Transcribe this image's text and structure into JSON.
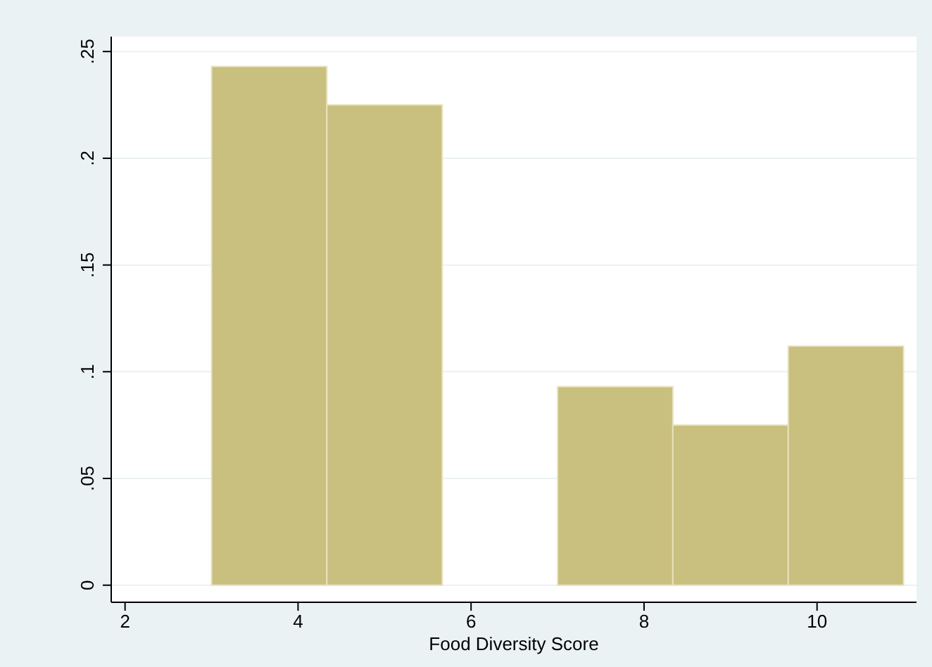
{
  "chart_data": {
    "type": "histogram",
    "xlabel": "Food Diversity Score",
    "bins": [
      3,
      4.333,
      5.667,
      7,
      8.333,
      9.667,
      11
    ],
    "values": [
      0.243,
      0.225,
      0,
      0.093,
      0.075,
      0.112
    ],
    "color": "#c9bf7e",
    "xlim": [
      1.84,
      11.15
    ],
    "ylim": [
      -0.008,
      0.257
    ],
    "xticks": [
      2,
      4,
      6,
      8,
      10
    ],
    "yticks": [
      {
        "value": 0,
        "label": "0"
      },
      {
        "value": 0.05,
        "label": ".05"
      },
      {
        "value": 0.1,
        "label": ".1"
      },
      {
        "value": 0.15,
        "label": ".15"
      },
      {
        "value": 0.2,
        "label": ".2"
      },
      {
        "value": 0.25,
        "label": ".25"
      }
    ],
    "grid": "y"
  }
}
